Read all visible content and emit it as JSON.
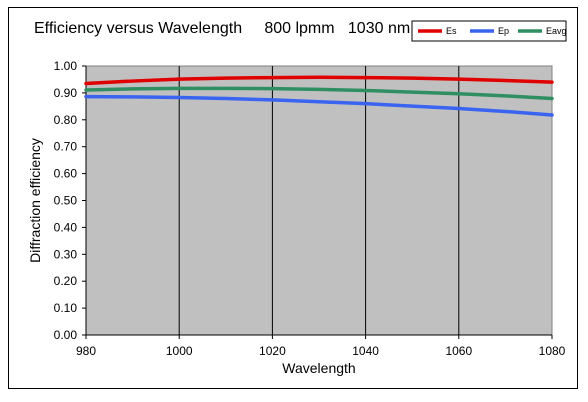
{
  "chart_data": {
    "type": "line",
    "title": "Efficiency versus Wavelength     800 lpmm   1030 nm",
    "xlabel": "Wavelength",
    "ylabel": "Diffraction  efficiency",
    "xlim": [
      980,
      1080
    ],
    "ylim": [
      0.0,
      1.0
    ],
    "x_ticks": [
      "980",
      "1000",
      "1020",
      "1040",
      "1060",
      "1080"
    ],
    "y_ticks": [
      "0.00",
      "0.10",
      "0.20",
      "0.30",
      "0.40",
      "0.50",
      "0.60",
      "0.70",
      "0.80",
      "0.90",
      "1.00"
    ],
    "grid": "vertical",
    "legend_position": "top-right",
    "x": [
      980,
      990,
      1000,
      1010,
      1020,
      1030,
      1040,
      1050,
      1060,
      1070,
      1080
    ],
    "series": [
      {
        "name": "Es",
        "color": "#e00000",
        "values": [
          0.935,
          0.944,
          0.951,
          0.955,
          0.957,
          0.958,
          0.957,
          0.955,
          0.951,
          0.946,
          0.94
        ]
      },
      {
        "name": "Ep",
        "color": "#3a64f0",
        "values": [
          0.886,
          0.885,
          0.883,
          0.879,
          0.874,
          0.867,
          0.86,
          0.851,
          0.842,
          0.831,
          0.818
        ]
      },
      {
        "name": "Eavg",
        "color": "#2f8f63",
        "values": [
          0.911,
          0.915,
          0.917,
          0.917,
          0.916,
          0.913,
          0.909,
          0.903,
          0.897,
          0.889,
          0.879
        ]
      }
    ]
  }
}
